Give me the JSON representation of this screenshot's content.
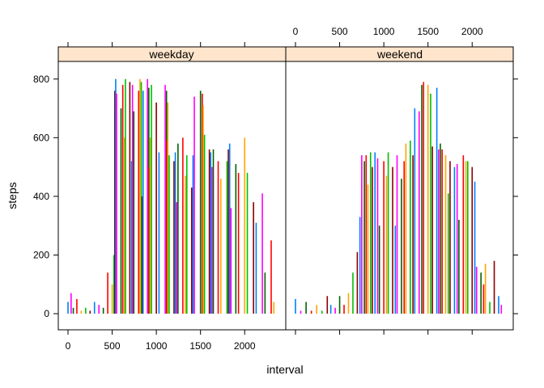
{
  "chart_data": {
    "type": "bar",
    "xlabel": "interval",
    "ylabel": "steps",
    "xlim": [
      -110,
      2465
    ],
    "ylim": [
      -55,
      860
    ],
    "x_ticks": [
      0,
      500,
      1000,
      1500,
      2000
    ],
    "y_ticks": [
      0,
      200,
      400,
      600,
      800
    ],
    "x_tick_labels": [
      "0",
      "500",
      "1000",
      "1500",
      "2000"
    ],
    "y_tick_labels": [
      "0",
      "200",
      "400",
      "600",
      "800"
    ],
    "strip_color": "#FFE5CC",
    "bar_colors": [
      "#0080FF",
      "#FF00FF",
      "#006400",
      "#FF0000",
      "#FFA500",
      "#00C000",
      "#8B0000"
    ],
    "panels": [
      {
        "name": "weekday",
        "x": [
          0,
          35,
          60,
          100,
          150,
          200,
          250,
          300,
          350,
          400,
          450,
          500,
          520,
          530,
          540,
          550,
          600,
          620,
          640,
          650,
          700,
          720,
          730,
          745,
          800,
          815,
          830,
          840,
          850,
          900,
          915,
          920,
          930,
          945,
          1000,
          1030,
          1100,
          1115,
          1120,
          1130,
          1145,
          1200,
          1215,
          1230,
          1245,
          1300,
          1330,
          1345,
          1400,
          1415,
          1430,
          1500,
          1520,
          1530,
          1545,
          1600,
          1615,
          1630,
          1645,
          1700,
          1730,
          1800,
          1815,
          1830,
          1845,
          1900,
          1930,
          2000,
          2030,
          2100,
          2130,
          2200,
          2230,
          2300,
          2330
        ],
        "y": [
          40,
          70,
          20,
          50,
          10,
          20,
          10,
          40,
          30,
          20,
          140,
          100,
          200,
          760,
          800,
          750,
          700,
          780,
          600,
          800,
          790,
          520,
          780,
          690,
          760,
          800,
          790,
          400,
          760,
          800,
          770,
          500,
          600,
          780,
          720,
          550,
          780,
          760,
          590,
          720,
          540,
          520,
          550,
          380,
          580,
          600,
          470,
          540,
          430,
          540,
          740,
          760,
          750,
          710,
          610,
          560,
          550,
          500,
          560,
          520,
          460,
          520,
          560,
          580,
          360,
          510,
          480,
          600,
          480,
          380,
          310,
          410,
          140,
          250,
          40
        ]
      },
      {
        "name": "weekend",
        "x": [
          0,
          60,
          120,
          180,
          240,
          300,
          360,
          400,
          450,
          500,
          550,
          600,
          650,
          700,
          730,
          750,
          780,
          800,
          820,
          850,
          870,
          900,
          930,
          950,
          1000,
          1030,
          1050,
          1100,
          1130,
          1150,
          1200,
          1230,
          1250,
          1300,
          1330,
          1350,
          1400,
          1430,
          1450,
          1500,
          1530,
          1550,
          1600,
          1620,
          1640,
          1660,
          1700,
          1730,
          1750,
          1800,
          1830,
          1850,
          1900,
          1930,
          1950,
          2000,
          2030,
          2050,
          2100,
          2130,
          2150,
          2200,
          2250,
          2300,
          2330
        ],
        "y": [
          50,
          10,
          40,
          10,
          30,
          10,
          60,
          30,
          20,
          60,
          30,
          70,
          140,
          210,
          330,
          540,
          520,
          540,
          440,
          550,
          500,
          550,
          530,
          300,
          520,
          470,
          550,
          500,
          300,
          540,
          460,
          520,
          580,
          590,
          540,
          700,
          690,
          780,
          790,
          780,
          750,
          570,
          770,
          560,
          580,
          560,
          540,
          410,
          520,
          500,
          510,
          320,
          540,
          520,
          520,
          500,
          450,
          160,
          140,
          100,
          170,
          40,
          180,
          60,
          30
        ]
      }
    ]
  }
}
